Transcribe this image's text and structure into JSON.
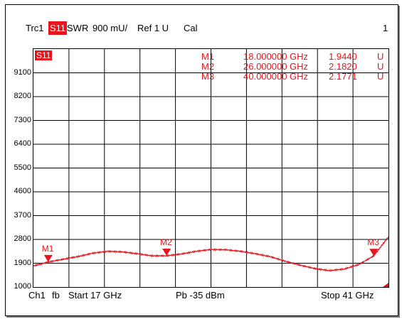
{
  "header": {
    "trace": "Trc1",
    "param": "S11",
    "format": "SWR",
    "scale": "900 mU/",
    "ref": "Ref 1 U",
    "cal": "Cal",
    "trace_number": "1"
  },
  "plot": {
    "trace_badge": "S11",
    "y_ticks": [
      "9100",
      "8200",
      "7300",
      "6400",
      "5500",
      "4600",
      "3700",
      "2800",
      "1900",
      "1000"
    ],
    "colors": {
      "trace": "#e8141b",
      "grid": "#000000"
    }
  },
  "markers": [
    {
      "name": "M1",
      "freq": "18.000000",
      "unit": "GHz",
      "value": "1.9440",
      "value_unit": "U"
    },
    {
      "name": "M2",
      "freq": "26.000000",
      "unit": "GHz",
      "value": "2.1820",
      "value_unit": "U"
    },
    {
      "name": "M3",
      "freq": "40.000000",
      "unit": "GHz",
      "value": "2.1771",
      "value_unit": "U"
    }
  ],
  "footer": {
    "channel": "Ch1",
    "mode": "fb",
    "start": "Start  17 GHz",
    "power": "Pb   -35 dBm",
    "stop": "Stop  41 GHz"
  },
  "chart_data": {
    "type": "line",
    "x_range": [
      17,
      41
    ],
    "x_unit": "GHz",
    "y_ticks": [
      9100,
      8200,
      7300,
      6400,
      5500,
      4600,
      3700,
      2800,
      1900,
      1000
    ],
    "ylim": [
      1000,
      10000
    ],
    "grid": true,
    "series": [
      {
        "name": "S11",
        "x": [
          17,
          18,
          19,
          20,
          21,
          22,
          23,
          24,
          25,
          26,
          27,
          28,
          29,
          30,
          31,
          32,
          33,
          34,
          35,
          36,
          37,
          38,
          39,
          40,
          41
        ],
        "y": [
          1800,
          1944,
          2050,
          2150,
          2280,
          2350,
          2330,
          2260,
          2180,
          2182,
          2250,
          2350,
          2420,
          2410,
          2350,
          2260,
          2150,
          1980,
          1830,
          1700,
          1620,
          1680,
          1850,
          2177,
          2900
        ]
      }
    ]
  }
}
